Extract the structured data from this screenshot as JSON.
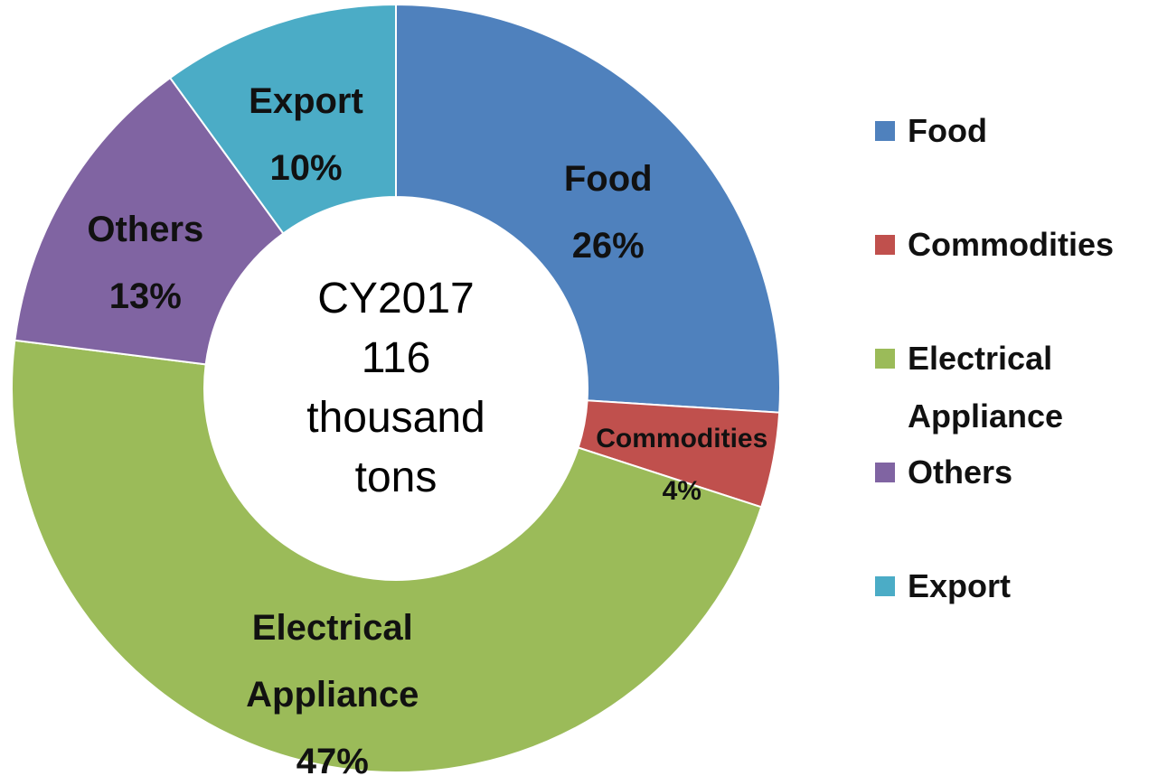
{
  "chart_data": {
    "type": "donut",
    "center_text": "CY2017 116 thousand tons",
    "categories": [
      "Food",
      "Commodities",
      "Electrical Appliance",
      "Others",
      "Export"
    ],
    "values": [
      26,
      4,
      47,
      13,
      10
    ],
    "value_labels": [
      "26%",
      "4%",
      "47%",
      "13%",
      "10%"
    ],
    "colors": [
      "#4f81bd",
      "#c0504d",
      "#9bbb59",
      "#8064a2",
      "#4bacc6"
    ],
    "legend": "right"
  }
}
